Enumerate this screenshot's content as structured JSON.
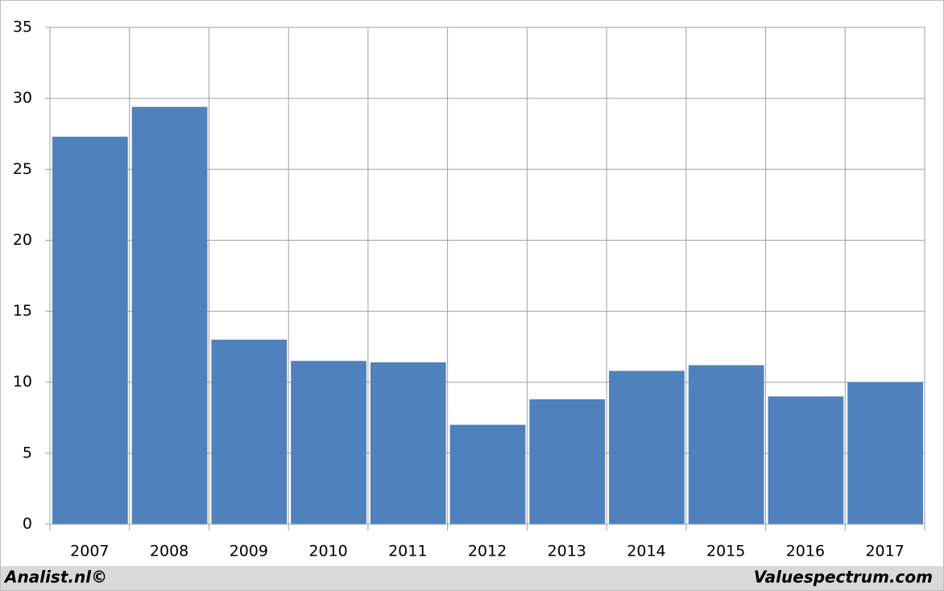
{
  "chart_data": {
    "type": "bar",
    "categories": [
      "2007",
      "2008",
      "2009",
      "2010",
      "2011",
      "2012",
      "2013",
      "2014",
      "2015",
      "2016",
      "2017"
    ],
    "values": [
      27.3,
      29.4,
      13.0,
      11.5,
      11.4,
      7.0,
      8.8,
      10.8,
      11.2,
      9.0,
      10.0
    ],
    "color": "#4f81bd",
    "ylim": [
      0,
      35
    ],
    "yticks": [
      0,
      5,
      10,
      15,
      20,
      25,
      30,
      35
    ],
    "grid": true,
    "footer_left": "Analist.nl©",
    "footer_right": "Valuespectrum.com"
  }
}
